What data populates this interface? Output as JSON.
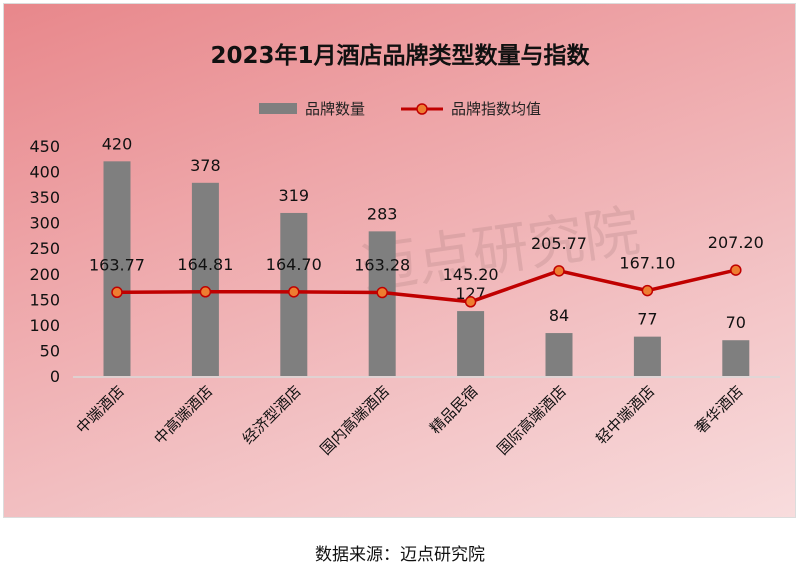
{
  "chart_data": {
    "type": "bar+line",
    "title": "2023年1月酒店品牌类型数量与指数",
    "categories": [
      "中端酒店",
      "中高端酒店",
      "经济型酒店",
      "国内高端酒店",
      "精品民宿",
      "国际高端酒店",
      "轻中端酒店",
      "奢华酒店"
    ],
    "series": [
      {
        "name": "品牌数量",
        "type": "bar",
        "color": "#7f7f7f",
        "values": [
          420,
          378,
          319,
          283,
          127,
          84,
          77,
          70
        ]
      },
      {
        "name": "品牌指数均值",
        "type": "line",
        "color": "#c00000",
        "marker_color": "#ed7d31",
        "values": [
          163.77,
          164.81,
          164.7,
          163.28,
          145.2,
          205.77,
          167.1,
          207.2
        ]
      }
    ],
    "y_ticks": [
      0,
      50,
      100,
      150,
      200,
      250,
      300,
      350,
      400,
      450
    ],
    "ylim": [
      0,
      450
    ],
    "xlabel": "",
    "ylabel": "",
    "grid": false,
    "legend_position": "top"
  },
  "legend": {
    "bar_label": "品牌数量",
    "line_label": "品牌指数均值"
  },
  "watermark": "迈点研究院",
  "source": "数据来源：迈点研究院"
}
